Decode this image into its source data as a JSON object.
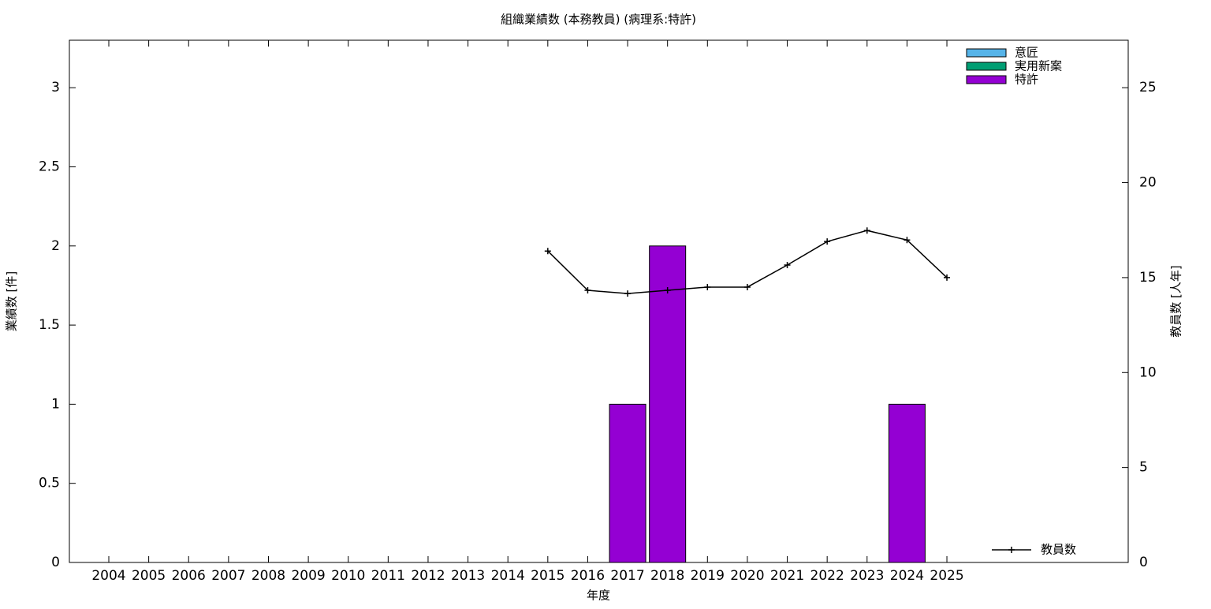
{
  "chart_data": {
    "type": "bar",
    "title": "組織業績数 (本務教員) (病理系:特許)",
    "x_label": "年度",
    "y_label": "業績数 [件]",
    "y2_label": "教員数 [人年]",
    "categories": [
      "2004",
      "2005",
      "2006",
      "2007",
      "2008",
      "2009",
      "2010",
      "2011",
      "2012",
      "2013",
      "2014",
      "2015",
      "2016",
      "2017",
      "2018",
      "2019",
      "2020",
      "2021",
      "2022",
      "2023",
      "2024",
      "2025"
    ],
    "series": [
      {
        "name": "意匠",
        "color": "#56b4e9",
        "values": [
          0,
          0,
          0,
          0,
          0,
          0,
          0,
          0,
          0,
          0,
          0,
          0,
          0,
          0,
          0,
          0,
          0,
          0,
          0,
          0,
          0,
          0
        ]
      },
      {
        "name": "実用新案",
        "color": "#009e73",
        "values": [
          0,
          0,
          0,
          0,
          0,
          0,
          0,
          0,
          0,
          0,
          0,
          0,
          0,
          0,
          0,
          0,
          0,
          0,
          0,
          0,
          0,
          0
        ]
      },
      {
        "name": "特許",
        "color": "#9400d3",
        "values": [
          0,
          0,
          0,
          0,
          0,
          0,
          0,
          0,
          0,
          0,
          0,
          0,
          0,
          1,
          2,
          0,
          0,
          0,
          0,
          0,
          1,
          0
        ]
      },
      {
        "name": "教員数",
        "color": "#000000",
        "type": "line",
        "axis": "y2",
        "values": [
          null,
          null,
          null,
          null,
          null,
          null,
          null,
          null,
          null,
          null,
          null,
          16.4,
          14.33,
          14.16,
          14.33,
          14.5,
          14.5,
          15.66,
          16.9,
          17.48,
          16.98,
          15.0
        ]
      }
    ],
    "stacked": true,
    "ylim": [
      0,
      3.3
    ],
    "yticks": [
      0,
      0.5,
      1,
      1.5,
      2,
      2.5,
      3
    ],
    "y2lim": [
      0,
      27.5
    ],
    "y2ticks": [
      0,
      5,
      10,
      15,
      20,
      25
    ],
    "legend": "top-right"
  }
}
